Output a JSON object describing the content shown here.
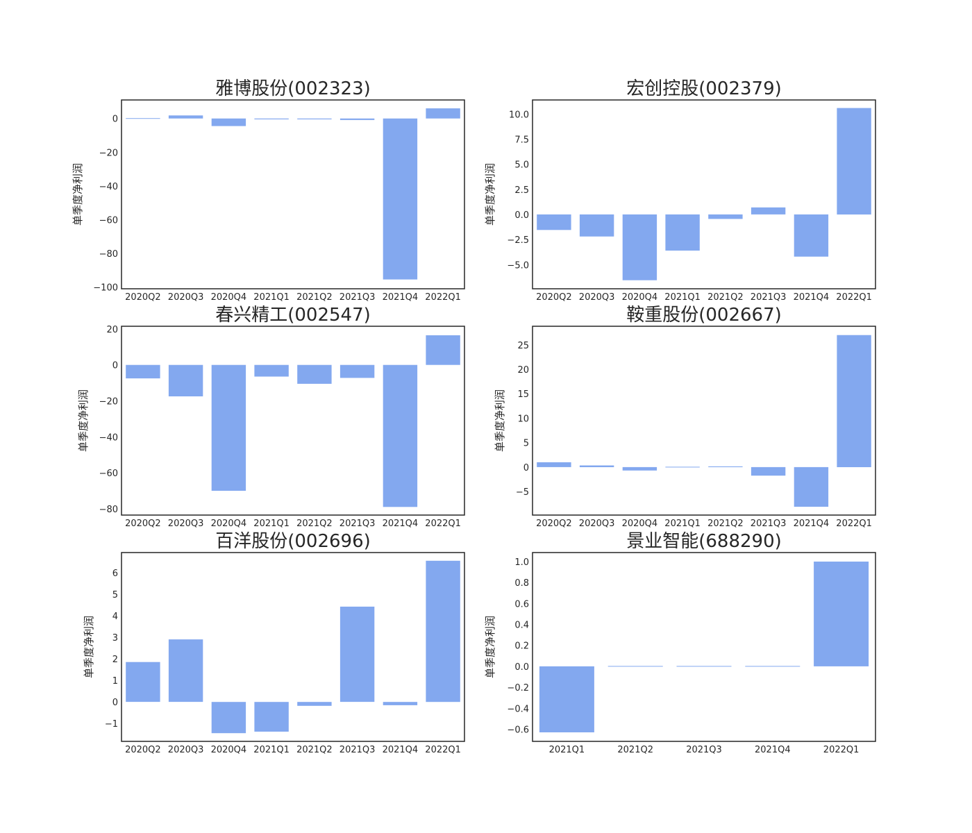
{
  "chart_data": [
    {
      "type": "bar",
      "title": "雅博股份(002323)",
      "ylabel": "单季度净利润",
      "categories": [
        "2020Q2",
        "2020Q3",
        "2020Q4",
        "2021Q1",
        "2021Q2",
        "2021Q3",
        "2021Q4",
        "2022Q1"
      ],
      "values": [
        0.3,
        1.8,
        -4.5,
        -0.5,
        -0.5,
        -0.9,
        -95.5,
        6.0
      ],
      "ylim": [
        -101,
        11
      ],
      "yticks": [
        0,
        -20,
        -40,
        -60,
        -80,
        -100
      ],
      "ytick_labels": [
        "0",
        "−20",
        "−40",
        "−60",
        "−80",
        "−100"
      ]
    },
    {
      "type": "bar",
      "title": "宏创控股(002379)",
      "ylabel": "单季度净利润",
      "categories": [
        "2020Q2",
        "2020Q3",
        "2020Q4",
        "2021Q1",
        "2021Q2",
        "2021Q3",
        "2021Q4",
        "2022Q1"
      ],
      "values": [
        -1.55,
        -2.2,
        -6.55,
        -3.6,
        -0.45,
        0.7,
        -4.2,
        10.6
      ],
      "ylim": [
        -7.4,
        11.4
      ],
      "yticks": [
        10.0,
        7.5,
        5.0,
        2.5,
        0.0,
        -2.5,
        -5.0
      ],
      "ytick_labels": [
        "10.0",
        "7.5",
        "5.0",
        "2.5",
        "0.0",
        "−2.5",
        "−5.0"
      ]
    },
    {
      "type": "bar",
      "title": "春兴精工(002547)",
      "ylabel": "单季度净利润",
      "categories": [
        "2020Q2",
        "2020Q3",
        "2020Q4",
        "2021Q1",
        "2021Q2",
        "2021Q3",
        "2021Q4",
        "2022Q1"
      ],
      "values": [
        -7.5,
        -17.5,
        -70.0,
        -6.5,
        -10.5,
        -7.2,
        -79.0,
        16.5
      ],
      "ylim": [
        -83.5,
        21.5
      ],
      "yticks": [
        20,
        0,
        -20,
        -40,
        -60,
        -80
      ],
      "ytick_labels": [
        "20",
        "0",
        "−20",
        "−40",
        "−60",
        "−80"
      ]
    },
    {
      "type": "bar",
      "title": "鞍重股份(002667)",
      "ylabel": "单季度净利润",
      "categories": [
        "2020Q2",
        "2020Q3",
        "2020Q4",
        "2021Q1",
        "2021Q2",
        "2021Q3",
        "2021Q4",
        "2022Q1"
      ],
      "values": [
        1.0,
        0.35,
        -0.7,
        -0.1,
        0.15,
        -1.75,
        -8.1,
        27.0
      ],
      "ylim": [
        -9.8,
        28.8
      ],
      "yticks": [
        25,
        20,
        15,
        10,
        5,
        0,
        -5
      ],
      "ytick_labels": [
        "25",
        "20",
        "15",
        "10",
        "5",
        "0",
        "−5"
      ]
    },
    {
      "type": "bar",
      "title": "百洋股份(002696)",
      "ylabel": "单季度净利润",
      "categories": [
        "2020Q2",
        "2020Q3",
        "2020Q4",
        "2021Q1",
        "2021Q2",
        "2021Q3",
        "2021Q4",
        "2022Q1"
      ],
      "values": [
        1.85,
        2.9,
        -1.45,
        -1.38,
        -0.18,
        4.42,
        -0.15,
        6.55
      ],
      "ylim": [
        -1.83,
        6.93
      ],
      "yticks": [
        6,
        5,
        4,
        3,
        2,
        1,
        0,
        -1
      ],
      "ytick_labels": [
        "6",
        "5",
        "4",
        "3",
        "2",
        "1",
        "0",
        "−1"
      ]
    },
    {
      "type": "bar",
      "title": "景业智能(688290)",
      "ylabel": "单季度净利润",
      "categories": [
        "2021Q1",
        "2021Q2",
        "2021Q3",
        "2021Q4",
        "2022Q1"
      ],
      "values": [
        -0.63,
        0,
        0,
        0,
        1.0
      ],
      "ylim": [
        -0.716,
        1.086
      ],
      "yticks": [
        1.0,
        0.8,
        0.6,
        0.4,
        0.2,
        0.0,
        -0.2,
        -0.4,
        -0.6
      ],
      "ytick_labels": [
        "1.0",
        "0.8",
        "0.6",
        "0.4",
        "0.2",
        "0.0",
        "−0.2",
        "−0.4",
        "−0.6"
      ]
    }
  ],
  "colors": {
    "bar": "#83a8ef",
    "frame": "#262626",
    "text": "#262626"
  }
}
